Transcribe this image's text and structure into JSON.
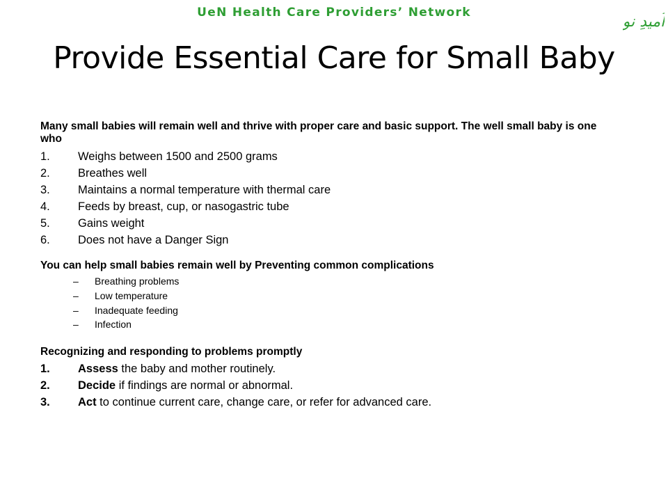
{
  "header": {
    "network": "UeN Health Care Providers’ Network",
    "logo_text": "اُمیدِ نو",
    "logo_color": "#2e9e33"
  },
  "title": "Provide Essential Care for Small Baby",
  "section1": {
    "intro": "Many small babies will remain well and thrive with proper care and basic support. The well small baby is one who",
    "items": [
      {
        "num": "1.",
        "text": "Weighs between 1500 and 2500 grams"
      },
      {
        "num": "2.",
        "text": "Breathes well"
      },
      {
        "num": "3.",
        "text": "Maintains a normal temperature with thermal care"
      },
      {
        "num": "4.",
        "text": "Feeds by breast, cup, or nasogastric tube"
      },
      {
        "num": "5.",
        "text": "Gains weight"
      },
      {
        "num": "6.",
        "text": "Does not have a Danger Sign"
      }
    ]
  },
  "section2": {
    "heading": "You can help small babies remain well by Preventing common complications",
    "bullet": "–",
    "items": [
      "Breathing problems",
      "Low temperature",
      "Inadequate feeding",
      "Infection"
    ]
  },
  "section3": {
    "heading": "Recognizing and responding to problems promptly",
    "items": [
      {
        "num": "1.",
        "bold": "Assess",
        "rest": " the baby and mother routinely."
      },
      {
        "num": "2.",
        "bold": "Decide",
        "rest": " if findings are normal or abnormal."
      },
      {
        "num": "3.",
        "bold": "Act",
        "rest": " to continue current care, change care, or refer for advanced care."
      }
    ]
  }
}
